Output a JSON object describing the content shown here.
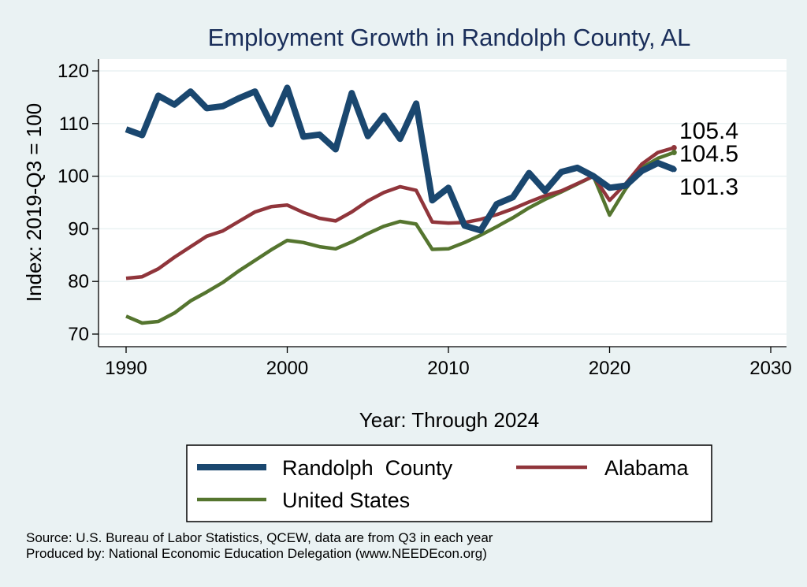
{
  "chart_data": {
    "type": "line",
    "title": "Employment Growth in Randolph County, AL",
    "xlabel": "Year: Through 2024",
    "ylabel": "Index: 2019-Q3 = 100",
    "xlim": [
      1990,
      2030
    ],
    "ylim": [
      70,
      120
    ],
    "x_ticks": [
      1990,
      2000,
      2010,
      2020,
      2030
    ],
    "y_ticks": [
      70,
      80,
      90,
      100,
      110,
      120
    ],
    "grid": "horizontal",
    "legend_position": "bottom",
    "x": [
      1990,
      1991,
      1992,
      1993,
      1994,
      1995,
      1996,
      1997,
      1998,
      1999,
      2000,
      2001,
      2002,
      2003,
      2004,
      2005,
      2006,
      2007,
      2008,
      2009,
      2010,
      2011,
      2012,
      2013,
      2014,
      2015,
      2016,
      2017,
      2018,
      2019,
      2020,
      2021,
      2022,
      2023,
      2024
    ],
    "series": [
      {
        "name": "Randolph  County",
        "color": "#1a476f",
        "end_label": "101.3",
        "values": [
          108.9,
          107.8,
          115.3,
          113.6,
          116.1,
          112.9,
          113.3,
          114.8,
          116.1,
          109.9,
          116.8,
          107.5,
          107.9,
          105.1,
          115.8,
          107.6,
          111.5,
          107.1,
          113.8,
          95.4,
          97.8,
          90.6,
          89.7,
          94.7,
          96.0,
          100.6,
          97.2,
          100.8,
          101.6,
          100.0,
          97.8,
          98.2,
          101.0,
          102.5,
          101.3
        ]
      },
      {
        "name": "Alabama",
        "color": "#90353b",
        "end_label": "105.4",
        "values": [
          80.6,
          80.9,
          82.4,
          84.6,
          86.6,
          88.6,
          89.6,
          91.4,
          93.2,
          94.2,
          94.5,
          93.1,
          92.0,
          91.5,
          93.2,
          95.3,
          96.9,
          98.0,
          97.3,
          91.3,
          91.1,
          91.2,
          91.8,
          92.7,
          93.8,
          95.1,
          96.3,
          97.2,
          98.6,
          100.0,
          95.4,
          98.6,
          102.3,
          104.5,
          105.4
        ]
      },
      {
        "name": "United States",
        "color": "#55752f",
        "end_label": "104.5",
        "values": [
          73.4,
          72.1,
          72.4,
          74.0,
          76.3,
          78.0,
          79.8,
          82.0,
          84.0,
          86.0,
          87.8,
          87.4,
          86.6,
          86.2,
          87.5,
          89.1,
          90.5,
          91.4,
          90.9,
          86.1,
          86.2,
          87.4,
          88.8,
          90.4,
          92.1,
          94.0,
          95.6,
          97.0,
          98.5,
          100.0,
          92.6,
          97.6,
          101.6,
          103.4,
          104.5
        ]
      }
    ]
  },
  "footer": {
    "source": "Source: U.S. Bureau of Labor Statistics, QCEW, data are from Q3 in each year",
    "produced": "Produced by: National Economic Education Delegation (www.NEEDEcon.org)"
  }
}
